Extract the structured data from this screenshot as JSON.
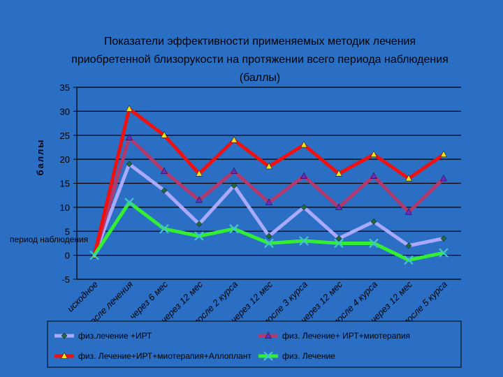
{
  "chart_data": {
    "type": "line",
    "title_lines": [
      "Показатели эффективности применяемых методик лечения",
      "приобретенной близорукости на протяжении всего периода наблюдения",
      "(баллы)"
    ],
    "ylabel": "баллы",
    "ylim": [
      -5,
      35
    ],
    "yticks": [
      "-5",
      "0",
      "5",
      "10",
      "15",
      "20",
      "25",
      "30",
      "35"
    ],
    "categories": [
      "исходное",
      "после лечения",
      "через 6 мес",
      "через 12 мес",
      "после 2 курса",
      "через 12 мес",
      "после 3 курса",
      "через 12 мес",
      "после 4 курса",
      "через 12 мес",
      "после 5 курса"
    ],
    "annotation": "период наблюдения",
    "grid": true,
    "legend_position": "bottom",
    "series": [
      {
        "name": "физ.лечение +ИРТ",
        "color": "#a9a9ff",
        "marker": "diamond",
        "marker_color": "#1e6b3c",
        "values": [
          0,
          19,
          13.5,
          6.5,
          14.5,
          4,
          10,
          3.5,
          7,
          2,
          3.5
        ]
      },
      {
        "name": "физ. Лечение+ ИРТ+миотерапия",
        "color": "#b03a6e",
        "marker": "triangle",
        "marker_color": "#6a2cc8",
        "values": [
          0,
          24.5,
          17.5,
          11.5,
          17.5,
          11,
          16.5,
          10,
          16.5,
          9,
          16
        ]
      },
      {
        "name": "физ. Лечение+ИРТ+миотерапия+Аллоплант",
        "color": "#ee1111",
        "marker": "triangle",
        "marker_color": "#f0e020",
        "values": [
          0,
          30.5,
          25,
          17,
          24,
          18.5,
          23,
          17,
          21,
          16,
          21
        ]
      },
      {
        "name": "физ. Лечение",
        "color": "#33ee33",
        "marker": "x",
        "marker_color": "#40c8c8",
        "values": [
          0,
          11,
          5.5,
          4,
          5.5,
          2.5,
          3,
          2.5,
          2.5,
          -1,
          0.5
        ]
      }
    ]
  }
}
